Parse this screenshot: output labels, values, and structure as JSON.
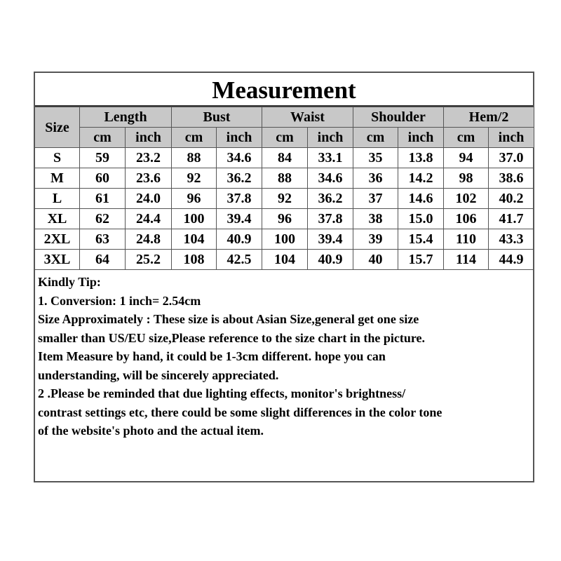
{
  "title": "Measurement",
  "size_label": "Size",
  "groups": [
    "Length",
    "Bust",
    "Waist",
    "Shoulder",
    "Hem/2"
  ],
  "units": [
    "cm",
    "inch"
  ],
  "rows": [
    [
      "S",
      "59",
      "23.2",
      "88",
      "34.6",
      "84",
      "33.1",
      "35",
      "13.8",
      "94",
      "37.0"
    ],
    [
      "M",
      "60",
      "23.6",
      "92",
      "36.2",
      "88",
      "34.6",
      "36",
      "14.2",
      "98",
      "38.6"
    ],
    [
      "L",
      "61",
      "24.0",
      "96",
      "37.8",
      "92",
      "36.2",
      "37",
      "14.6",
      "102",
      "40.2"
    ],
    [
      "XL",
      "62",
      "24.4",
      "100",
      "39.4",
      "96",
      "37.8",
      "38",
      "15.0",
      "106",
      "41.7"
    ],
    [
      "2XL",
      "63",
      "24.8",
      "104",
      "40.9",
      "100",
      "39.4",
      "39",
      "15.4",
      "110",
      "43.3"
    ],
    [
      "3XL",
      "64",
      "25.2",
      "108",
      "42.5",
      "104",
      "40.9",
      "40",
      "15.7",
      "114",
      "44.9"
    ]
  ],
  "tips": [
    "Kindly Tip:",
    "1. Conversion:  1 inch= 2.54cm",
    "Size Approximately :  These size is about Asian Size,general get one size",
    "smaller than US/EU size,Please reference to the size chart in the picture.",
    "Item Measure by hand, it could be 1-3cm different. hope you can",
    "understanding, will be sincerely appreciated.",
    "2 .Please be reminded that due lighting effects, monitor's brightness/",
    "contrast settings etc, there could be some slight differences in the color tone",
    "of the website's photo and the actual item."
  ],
  "colors": {
    "header_bg": "#c8c8c8",
    "border": "#555555"
  }
}
